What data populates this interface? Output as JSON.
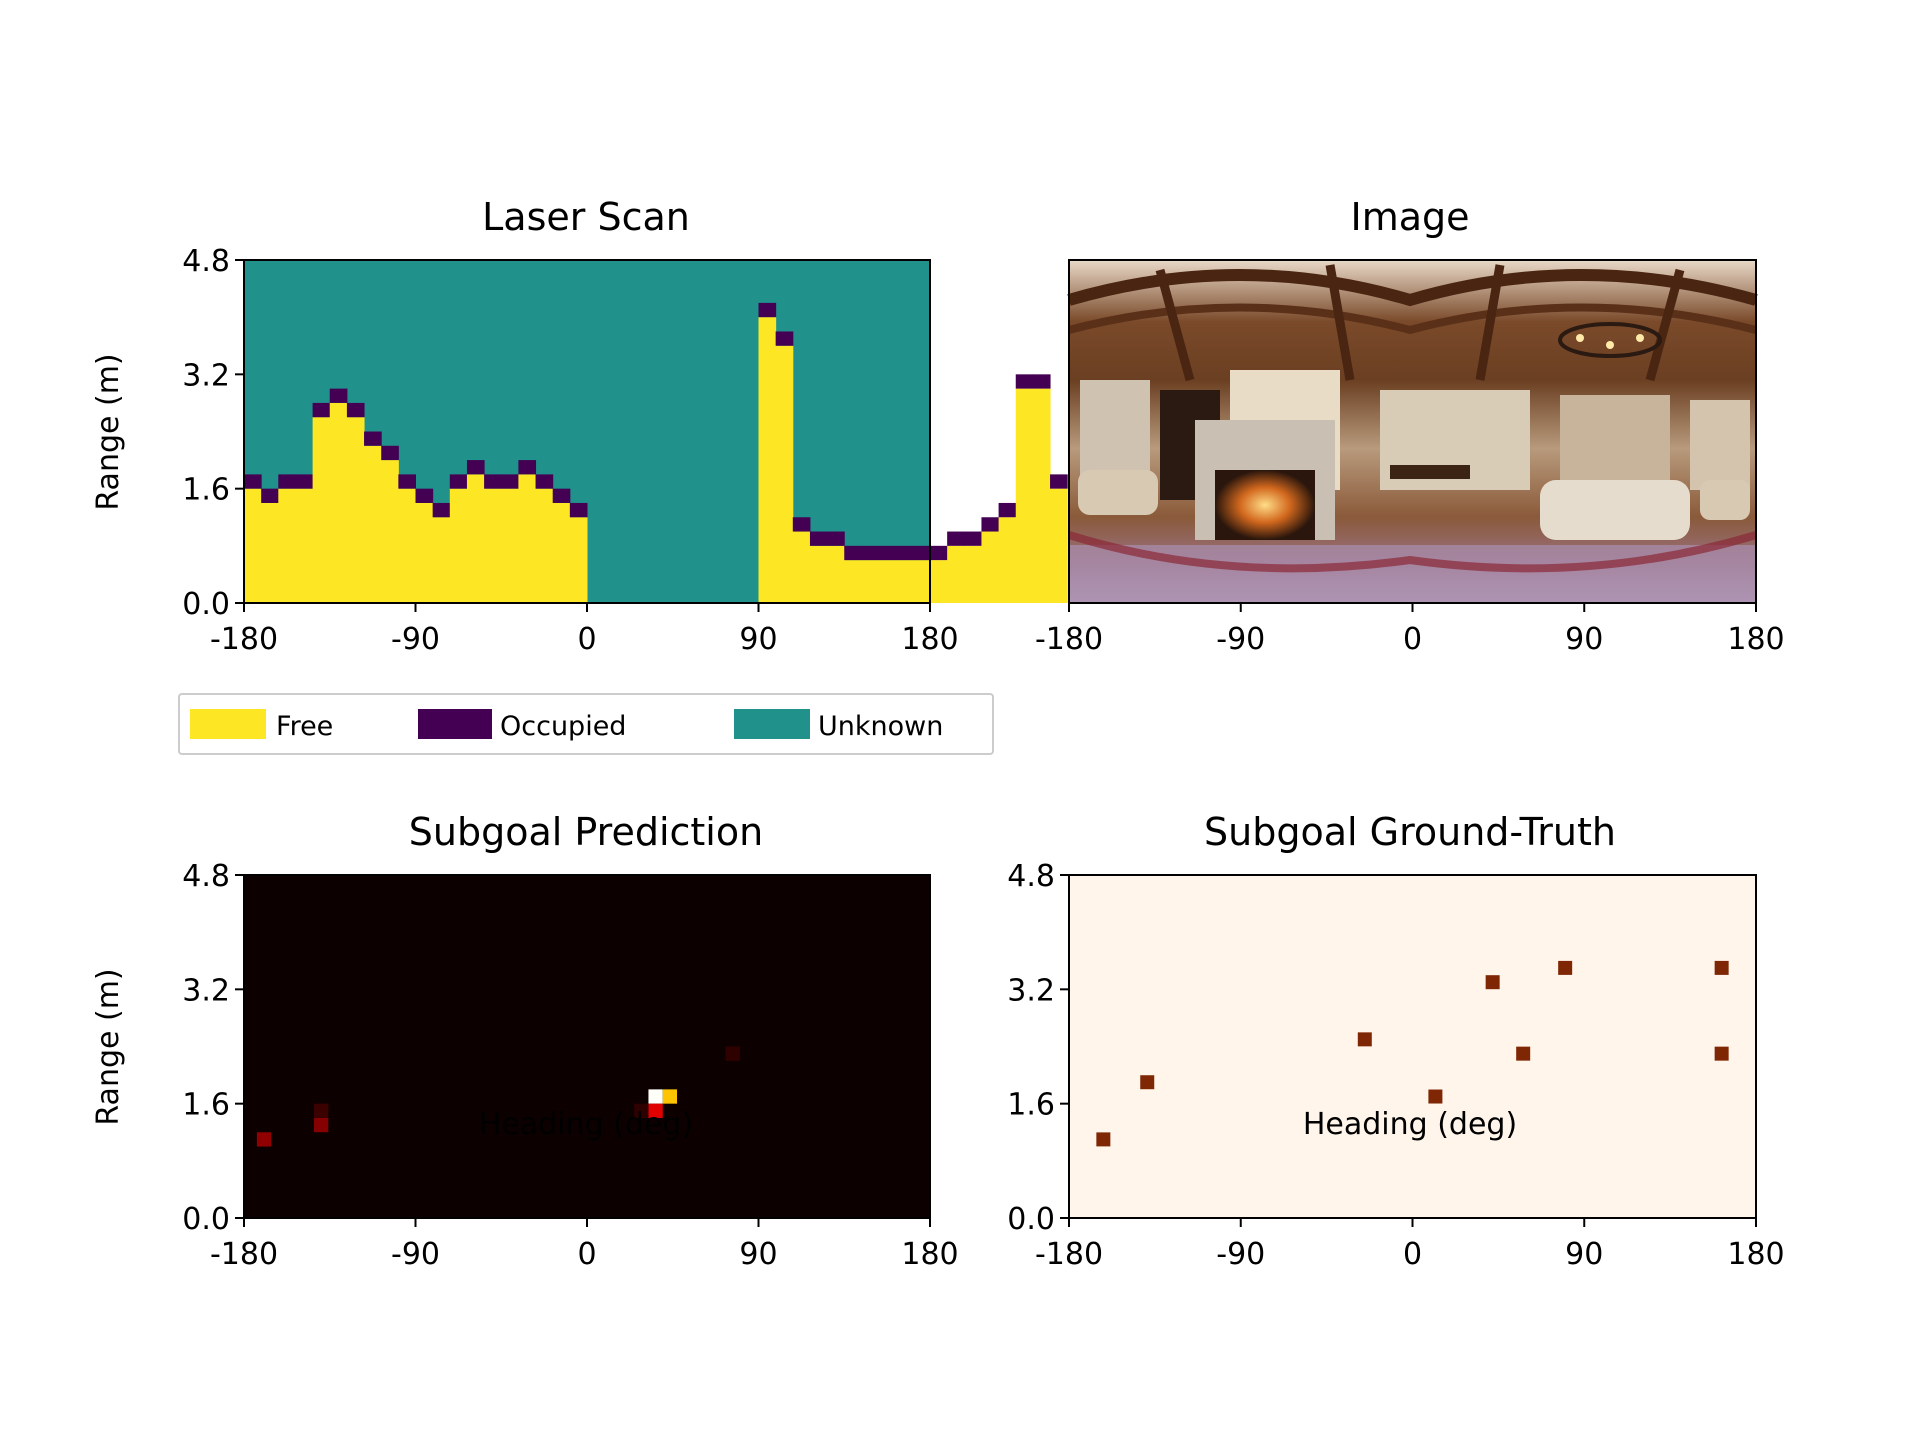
{
  "colors": {
    "free": "#fde725",
    "occupied": "#440154",
    "unknown": "#21918c",
    "pred_background": "#0d0000",
    "gt_background": "#fff5eb",
    "gt_marker": "#7f2704"
  },
  "chart_data": [
    {
      "panel": "laser-scan",
      "type": "heatmap",
      "title": "Laser Scan",
      "xlabel": "",
      "ylabel": "Range (m)",
      "xlim": [
        -180,
        180
      ],
      "ylim": [
        0.0,
        4.8
      ],
      "xticks": [
        "-180",
        "-90",
        "0",
        "90",
        "180"
      ],
      "yticks": [
        "0.0",
        "1.6",
        "3.2",
        "4.8"
      ],
      "heading_bin_deg": 9,
      "range_bin_m": 0.2,
      "free_range_per_bin_m": [
        1.6,
        1.4,
        1.6,
        1.6,
        2.6,
        2.8,
        2.6,
        2.2,
        2.0,
        1.6,
        1.4,
        1.2,
        1.6,
        1.8,
        1.6,
        1.6,
        1.8,
        1.6,
        1.4,
        1.2,
        null,
        null,
        null,
        null,
        null,
        null,
        null,
        null,
        null,
        null,
        4.0,
        3.6,
        1.0,
        0.8,
        0.8,
        0.6,
        0.6,
        0.6,
        0.6,
        0.6,
        0.6,
        0.8,
        0.8,
        1.0,
        1.2,
        3.0,
        3.0,
        1.6
      ],
      "legend": [
        "Free",
        "Occupied",
        "Unknown"
      ],
      "legend_placement": "below"
    },
    {
      "panel": "image",
      "type": "image",
      "title": "Image",
      "xlim": [
        -180,
        180
      ],
      "xticks": [
        "-180",
        "-90",
        "0",
        "90",
        "180"
      ]
    },
    {
      "panel": "subgoal-prediction",
      "type": "heatmap",
      "title": "Subgoal Prediction",
      "xlabel": "Heading (deg)",
      "ylabel": "Range (m)",
      "xlim": [
        -180,
        180
      ],
      "ylim": [
        0.0,
        4.8
      ],
      "xticks": [
        "-180",
        "-90",
        "0",
        "90",
        "180"
      ],
      "yticks": [
        "0.0",
        "1.6",
        "3.2",
        "4.8"
      ],
      "cells": [
        {
          "heading": 36.0,
          "range": 1.7,
          "value": 1.0
        },
        {
          "heading": 43.5,
          "range": 1.7,
          "value": 0.75
        },
        {
          "heading": 36.0,
          "range": 1.5,
          "value": 0.35
        },
        {
          "heading": -169.5,
          "range": 1.1,
          "value": 0.22
        },
        {
          "heading": -139.5,
          "range": 1.3,
          "value": 0.2
        },
        {
          "heading": -139.5,
          "range": 1.5,
          "value": 0.08
        },
        {
          "heading": 76.5,
          "range": 2.3,
          "value": 0.06
        },
        {
          "heading": 28.5,
          "range": 1.5,
          "value": 0.06
        }
      ]
    },
    {
      "panel": "subgoal-ground-truth",
      "type": "scatter",
      "title": "Subgoal Ground-Truth",
      "xlabel": "Heading (deg)",
      "ylabel": "",
      "xlim": [
        -180,
        180
      ],
      "ylim": [
        0.0,
        4.8
      ],
      "xticks": [
        "-180",
        "-90",
        "0",
        "90",
        "180"
      ],
      "yticks": [
        "0.0",
        "1.6",
        "3.2",
        "4.8"
      ],
      "x": [
        -162,
        -139,
        -25,
        12,
        42,
        58,
        80,
        162,
        162
      ],
      "y": [
        1.1,
        1.9,
        2.5,
        1.7,
        3.3,
        2.3,
        3.5,
        3.5,
        2.3
      ]
    }
  ]
}
